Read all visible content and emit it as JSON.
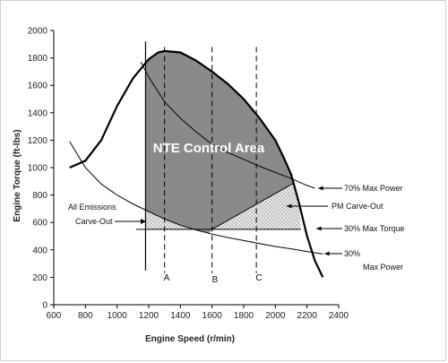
{
  "chart_data": {
    "type": "line",
    "xlabel": "Engine Speed (r/min)",
    "ylabel": "Engine Torque (ft-lbs)",
    "xlim": [
      600,
      2400
    ],
    "ylim": [
      0,
      2000
    ],
    "xticks": [
      600,
      800,
      1000,
      1200,
      1400,
      1600,
      1800,
      2000,
      2200,
      2400
    ],
    "yticks": [
      0,
      200,
      400,
      600,
      800,
      1000,
      1200,
      1400,
      1600,
      1800,
      2000
    ],
    "grid": false,
    "series": [
      {
        "values": [
          [
            700,
            1000
          ],
          [
            800,
            1050
          ],
          [
            900,
            1200
          ],
          [
            1000,
            1450
          ],
          [
            1100,
            1650
          ],
          [
            1200,
            1790
          ],
          [
            1260,
            1840
          ],
          [
            1300,
            1850
          ],
          [
            1400,
            1840
          ],
          [
            1500,
            1780
          ],
          [
            1600,
            1700
          ],
          [
            1700,
            1610
          ],
          [
            1800,
            1500
          ],
          [
            1900,
            1360
          ],
          [
            2000,
            1200
          ],
          [
            2050,
            1080
          ],
          [
            2100,
            950
          ],
          [
            2150,
            740
          ],
          [
            2200,
            500
          ],
          [
            2250,
            320
          ],
          [
            2300,
            200
          ]
        ]
      },
      {
        "values": [
          [
            1150,
            1770
          ],
          [
            1200,
            1660
          ],
          [
            1300,
            1480
          ],
          [
            1400,
            1360
          ],
          [
            1500,
            1260
          ],
          [
            1600,
            1170
          ],
          [
            1700,
            1110
          ],
          [
            1800,
            1060
          ],
          [
            1900,
            1010
          ],
          [
            2000,
            965
          ],
          [
            2100,
            920
          ],
          [
            2200,
            870
          ],
          [
            2250,
            850
          ]
        ]
      },
      {
        "values": [
          [
            700,
            1190
          ],
          [
            800,
            1000
          ],
          [
            900,
            880
          ],
          [
            1000,
            800
          ],
          [
            1100,
            735
          ],
          [
            1200,
            680
          ],
          [
            1300,
            625
          ],
          [
            1400,
            580
          ],
          [
            1500,
            545
          ],
          [
            1600,
            515
          ],
          [
            1700,
            490
          ],
          [
            1800,
            468
          ],
          [
            1900,
            446
          ],
          [
            2000,
            425
          ],
          [
            2100,
            408
          ],
          [
            2200,
            388
          ],
          [
            2300,
            370
          ]
        ]
      }
    ],
    "reference_lines": {
      "speed_A": 1300,
      "speed_B": 1600,
      "speed_C": 1880,
      "speed_boundary": 1180,
      "torque_30_percent": 550
    },
    "annotations": {
      "nte_label": "NTE Control Area",
      "max_power_70": "70% Max Power",
      "pm_carve_out": "PM Carve-Out",
      "max_torque_30": "30% Max Torque",
      "max_power_30_line1": "30%",
      "max_power_30_line2": "Max Power",
      "emissions_line1": "All Emissions",
      "emissions_line2": "Carve-Out",
      "marker_a": "A",
      "marker_b": "B",
      "marker_c": "C"
    },
    "colors": {
      "nte_fill": "#8a8a8a",
      "carve_out_fill": "#dcdcdc",
      "line": "#000000"
    }
  }
}
